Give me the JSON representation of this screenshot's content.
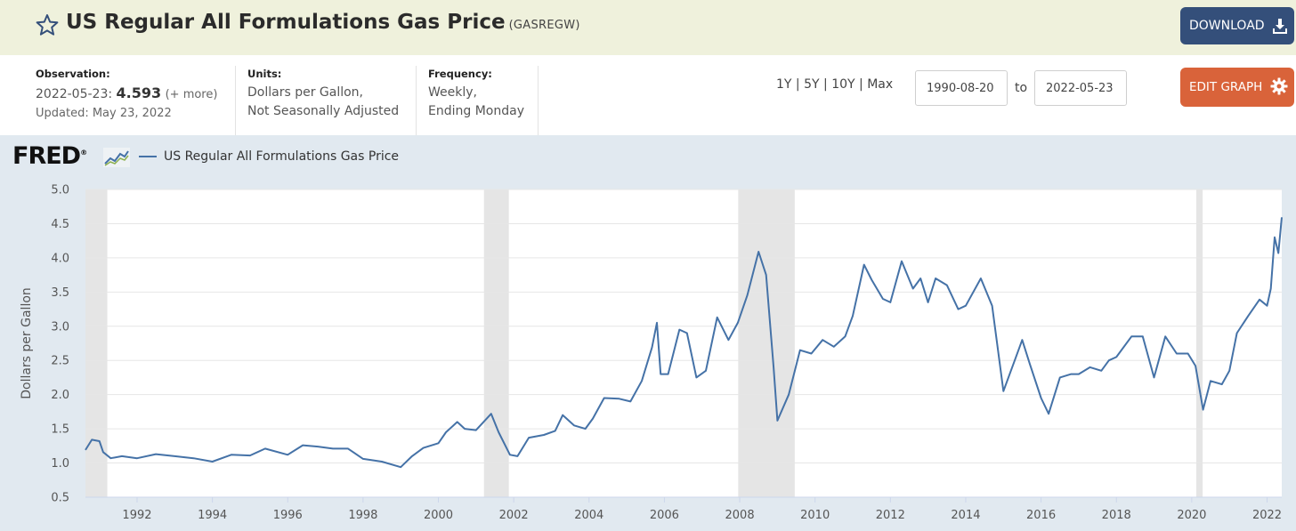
{
  "header": {
    "title": "US Regular All Formulations Gas Price",
    "series_id": "(GASREGW)",
    "download_label": "DOWNLOAD",
    "icons": {
      "favorite": "star-icon",
      "download": "download-icon"
    }
  },
  "meta": {
    "observation": {
      "label": "Observation:",
      "date": "2022-05-23:",
      "value": "4.593",
      "more": "(+ more)",
      "updated": "Updated: May 23, 2022"
    },
    "units": {
      "label": "Units:",
      "line1": "Dollars per Gallon,",
      "line2": "Not Seasonally Adjusted"
    },
    "frequency": {
      "label": "Frequency:",
      "line1": "Weekly,",
      "line2": "Ending Monday"
    }
  },
  "controls": {
    "range_1y": "1Y",
    "range_5y": "5Y",
    "range_10y": "10Y",
    "range_max": "Max",
    "separator": "|",
    "start_date": "1990-08-20",
    "to_label": "to",
    "end_date": "2022-05-23",
    "edit_label": "EDIT GRAPH",
    "icons": {
      "edit": "gear-icon"
    }
  },
  "chart": {
    "logo_text": "FRED",
    "logo_mark": "®",
    "legend_label": "US Regular All Formulations Gas Price"
  },
  "chart_data": {
    "type": "line",
    "title": "",
    "xlabel": "",
    "ylabel": "Dollars per Gallon",
    "ylim": [
      0.5,
      5.0
    ],
    "yticks": [
      0.5,
      1.0,
      1.5,
      2.0,
      2.5,
      3.0,
      3.5,
      4.0,
      4.5,
      5.0
    ],
    "xticks": [
      1992,
      1994,
      1996,
      1998,
      2000,
      2002,
      2004,
      2006,
      2008,
      2010,
      2012,
      2014,
      2016,
      2018,
      2020,
      2022
    ],
    "xlim": [
      1990.63,
      2022.39
    ],
    "grid": "horizontal",
    "line_color": "#4572a7",
    "recession_color": "#e5e5e5",
    "recessions": [
      [
        1990.63,
        1991.21
      ],
      [
        2001.21,
        2001.87
      ],
      [
        2007.96,
        2009.46
      ],
      [
        2020.12,
        2020.29
      ]
    ],
    "series": [
      {
        "name": "US Regular All Formulations Gas Price",
        "x": [
          1990.63,
          1990.8,
          1991.0,
          1991.1,
          1991.3,
          1991.6,
          1992.0,
          1992.5,
          1993.0,
          1993.5,
          1994.0,
          1994.5,
          1995.0,
          1995.4,
          1996.0,
          1996.4,
          1996.8,
          1997.2,
          1997.6,
          1998.0,
          1998.5,
          1999.0,
          1999.3,
          1999.6,
          2000.0,
          2000.2,
          2000.5,
          2000.7,
          2001.0,
          2001.4,
          2001.6,
          2001.9,
          2002.1,
          2002.4,
          2002.8,
          2003.1,
          2003.3,
          2003.6,
          2003.9,
          2004.1,
          2004.4,
          2004.8,
          2005.1,
          2005.4,
          2005.67,
          2005.8,
          2005.9,
          2006.1,
          2006.4,
          2006.6,
          2006.85,
          2007.1,
          2007.4,
          2007.7,
          2007.95,
          2008.2,
          2008.5,
          2008.7,
          2008.9,
          2009.0,
          2009.3,
          2009.6,
          2009.9,
          2010.2,
          2010.5,
          2010.8,
          2011.0,
          2011.3,
          2011.5,
          2011.8,
          2012.0,
          2012.3,
          2012.6,
          2012.8,
          2013.0,
          2013.2,
          2013.5,
          2013.8,
          2014.0,
          2014.4,
          2014.7,
          2015.0,
          2015.1,
          2015.3,
          2015.5,
          2015.7,
          2016.0,
          2016.2,
          2016.5,
          2016.8,
          2017.0,
          2017.3,
          2017.6,
          2017.8,
          2018.0,
          2018.4,
          2018.7,
          2018.9,
          2019.0,
          2019.3,
          2019.6,
          2019.9,
          2020.1,
          2020.3,
          2020.5,
          2020.8,
          2021.0,
          2021.2,
          2021.5,
          2021.8,
          2022.0,
          2022.1,
          2022.2,
          2022.3,
          2022.39
        ],
        "values": [
          1.19,
          1.34,
          1.32,
          1.16,
          1.07,
          1.1,
          1.07,
          1.13,
          1.1,
          1.07,
          1.02,
          1.12,
          1.11,
          1.21,
          1.12,
          1.26,
          1.24,
          1.21,
          1.21,
          1.06,
          1.02,
          0.94,
          1.1,
          1.22,
          1.29,
          1.45,
          1.6,
          1.5,
          1.48,
          1.72,
          1.45,
          1.12,
          1.1,
          1.37,
          1.41,
          1.47,
          1.7,
          1.55,
          1.5,
          1.65,
          1.95,
          1.94,
          1.9,
          2.2,
          2.69,
          3.05,
          2.3,
          2.3,
          2.95,
          2.9,
          2.25,
          2.35,
          3.13,
          2.8,
          3.05,
          3.45,
          4.09,
          3.75,
          2.4,
          1.62,
          2.0,
          2.65,
          2.6,
          2.8,
          2.7,
          2.85,
          3.15,
          3.9,
          3.68,
          3.4,
          3.35,
          3.95,
          3.55,
          3.7,
          3.35,
          3.7,
          3.6,
          3.25,
          3.3,
          3.7,
          3.3,
          2.05,
          2.2,
          2.5,
          2.8,
          2.45,
          1.95,
          1.72,
          2.25,
          2.3,
          2.3,
          2.4,
          2.35,
          2.5,
          2.55,
          2.85,
          2.85,
          2.45,
          2.25,
          2.85,
          2.6,
          2.6,
          2.42,
          1.78,
          2.2,
          2.15,
          2.35,
          2.9,
          3.15,
          3.39,
          3.3,
          3.55,
          4.3,
          4.07,
          4.593
        ]
      }
    ]
  }
}
